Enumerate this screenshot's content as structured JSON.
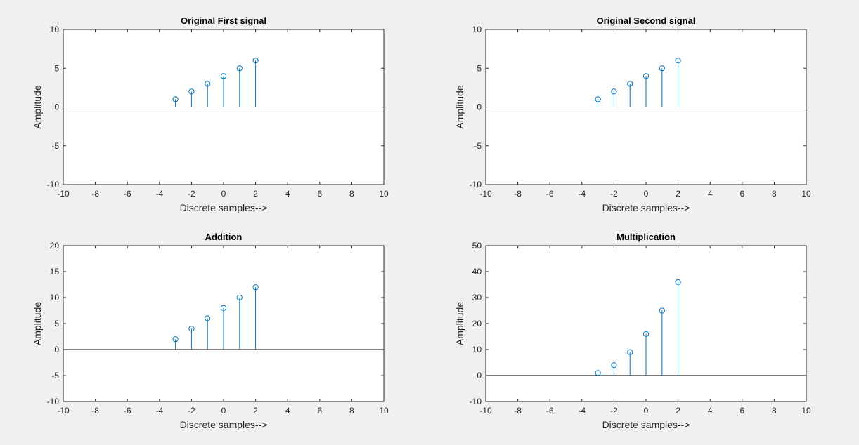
{
  "figure": {
    "background": "#f0f0f0",
    "stem_color": "#0072bd"
  },
  "chart_data": [
    {
      "type": "stem",
      "title": "Original First signal",
      "xlabel": "Discrete samples-->",
      "ylabel": "Amplitude",
      "xlim": [
        -10,
        10
      ],
      "ylim": [
        -10,
        10
      ],
      "xticks": [
        -10,
        -8,
        -6,
        -4,
        -2,
        0,
        2,
        4,
        6,
        8,
        10
      ],
      "yticks": [
        -10,
        -5,
        0,
        5,
        10
      ],
      "x": [
        -3,
        -2,
        -1,
        0,
        1,
        2
      ],
      "y": [
        1,
        2,
        3,
        4,
        5,
        6
      ]
    },
    {
      "type": "stem",
      "title": "Original Second signal",
      "xlabel": "Discrete samples-->",
      "ylabel": "Amplitude",
      "xlim": [
        -10,
        10
      ],
      "ylim": [
        -10,
        10
      ],
      "xticks": [
        -10,
        -8,
        -6,
        -4,
        -2,
        0,
        2,
        4,
        6,
        8,
        10
      ],
      "yticks": [
        -10,
        -5,
        0,
        5,
        10
      ],
      "x": [
        -3,
        -2,
        -1,
        0,
        1,
        2
      ],
      "y": [
        1,
        2,
        3,
        4,
        5,
        6
      ]
    },
    {
      "type": "stem",
      "title": "Addition",
      "xlabel": "Discrete samples-->",
      "ylabel": "Amplitude",
      "xlim": [
        -10,
        10
      ],
      "ylim": [
        -10,
        20
      ],
      "xticks": [
        -10,
        -8,
        -6,
        -4,
        -2,
        0,
        2,
        4,
        6,
        8,
        10
      ],
      "yticks": [
        -10,
        -5,
        0,
        5,
        10,
        15,
        20
      ],
      "x": [
        -3,
        -2,
        -1,
        0,
        1,
        2
      ],
      "y": [
        2,
        4,
        6,
        8,
        10,
        12
      ]
    },
    {
      "type": "stem",
      "title": "Multiplication",
      "xlabel": "Discrete samples-->",
      "ylabel": "Amplitude",
      "xlim": [
        -10,
        10
      ],
      "ylim": [
        -10,
        50
      ],
      "xticks": [
        -10,
        -8,
        -6,
        -4,
        -2,
        0,
        2,
        4,
        6,
        8,
        10
      ],
      "yticks": [
        -10,
        0,
        10,
        20,
        30,
        40,
        50
      ],
      "x": [
        -3,
        -2,
        -1,
        0,
        1,
        2
      ],
      "y": [
        1,
        4,
        9,
        16,
        25,
        36
      ]
    }
  ]
}
